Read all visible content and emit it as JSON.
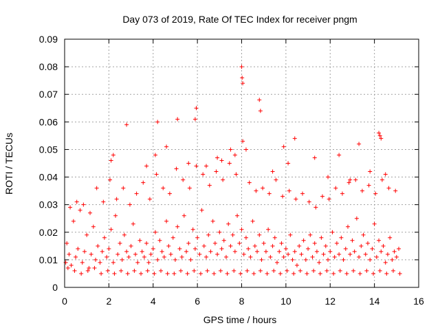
{
  "chart_data": {
    "type": "scatter",
    "title": "Day 073 of 2019, Rate Of TEC Index for receiver pngm",
    "xlabel": "GPS time / hours",
    "ylabel": "ROTI / TECUs",
    "xlim": [
      0,
      16
    ],
    "ylim": [
      0,
      0.09
    ],
    "xticks": [
      "0",
      "2",
      "4",
      "6",
      "8",
      "10",
      "12",
      "14",
      "16"
    ],
    "yticks": [
      "0",
      "0.01",
      "0.02",
      "0.03",
      "0.04",
      "0.05",
      "0.06",
      "0.07",
      "0.08",
      "0.09"
    ],
    "grid": true,
    "marker": "+",
    "color": "#ff0000",
    "series": [
      {
        "name": "ROTI",
        "x": [
          0.05,
          0.1,
          0.2,
          0.3,
          0.4,
          0.5,
          0.6,
          0.7,
          0.8,
          0.9,
          1.0,
          1.1,
          1.2,
          1.3,
          1.4,
          1.5,
          1.6,
          1.7,
          1.8,
          1.9,
          2.0,
          2.1,
          2.2,
          2.3,
          2.4,
          2.5,
          2.6,
          2.7,
          2.8,
          2.9,
          3.0,
          3.1,
          3.2,
          3.3,
          3.4,
          3.5,
          3.6,
          3.7,
          3.8,
          3.9,
          4.0,
          4.1,
          4.2,
          4.3,
          4.4,
          4.5,
          4.6,
          4.7,
          4.8,
          4.9,
          5.0,
          5.1,
          5.2,
          5.3,
          5.4,
          5.5,
          5.6,
          5.7,
          5.8,
          5.9,
          6.0,
          6.1,
          6.2,
          6.3,
          6.4,
          6.5,
          6.6,
          6.7,
          6.8,
          6.9,
          7.0,
          7.1,
          7.2,
          7.3,
          7.4,
          7.5,
          7.6,
          7.7,
          7.8,
          7.9,
          8.0,
          8.1,
          8.2,
          8.3,
          8.4,
          8.5,
          8.6,
          8.7,
          8.8,
          8.9,
          9.0,
          9.1,
          9.2,
          9.3,
          9.4,
          9.5,
          9.6,
          9.7,
          9.8,
          9.9,
          10.0,
          10.1,
          10.2,
          10.3,
          10.4,
          10.5,
          10.6,
          10.7,
          10.8,
          10.9,
          11.0,
          11.1,
          11.2,
          11.3,
          11.4,
          11.5,
          11.6,
          11.7,
          11.8,
          11.9,
          12.0,
          12.1,
          12.2,
          12.3,
          12.4,
          12.5,
          12.6,
          12.7,
          12.8,
          12.9,
          13.0,
          13.1,
          13.2,
          13.3,
          13.4,
          13.5,
          13.6,
          13.7,
          13.8,
          13.9,
          14.0,
          14.1,
          14.2,
          14.3,
          14.4,
          14.5,
          14.6,
          14.7,
          14.8,
          14.9,
          15.0,
          15.1,
          0.15,
          0.45,
          0.75,
          1.05,
          1.35,
          1.65,
          1.95,
          2.25,
          2.55,
          2.85,
          3.15,
          3.45,
          3.75,
          4.05,
          4.35,
          4.65,
          4.95,
          5.25,
          5.55,
          5.85,
          6.15,
          6.45,
          6.75,
          7.05,
          7.35,
          7.65,
          7.95,
          8.25,
          8.55,
          8.85,
          9.15,
          9.45,
          9.75,
          10.05,
          10.35,
          10.65,
          10.95,
          11.25,
          11.55,
          11.85,
          12.15,
          12.45,
          12.75,
          13.05,
          13.35,
          13.65,
          13.95,
          14.25,
          14.55,
          14.85,
          15.15,
          0.25,
          0.55,
          0.85,
          1.15,
          1.45,
          1.75,
          2.05,
          2.35,
          2.65,
          2.95,
          3.25,
          3.55,
          3.85,
          4.15,
          4.45,
          4.75,
          5.05,
          5.35,
          5.65,
          5.95,
          6.25,
          6.55,
          6.85,
          7.15,
          7.45,
          7.75,
          8.05,
          8.35,
          8.65,
          8.95,
          9.25,
          9.55,
          9.85,
          10.15,
          10.45,
          10.75,
          11.05,
          11.35,
          11.65,
          11.95,
          12.25,
          12.55,
          12.85,
          13.15,
          13.45,
          13.75,
          14.05,
          14.35,
          14.65,
          14.95,
          2.8,
          4.2,
          5.1,
          5.95,
          5.9,
          6.9,
          7.5,
          8.0,
          8.02,
          8.05,
          8.8,
          8.85,
          9.9,
          10.4,
          11.3,
          12.4,
          13.3,
          14.2,
          14.25,
          14.3,
          2.1,
          2.2,
          3.7,
          4.1,
          4.6,
          5.6,
          6.4,
          7.1,
          7.7,
          8.2,
          9.4,
          10.1,
          11.9,
          12.9,
          13.8,
          14.5
        ],
        "y": [
          0.009,
          0.016,
          0.012,
          0.008,
          0.024,
          0.011,
          0.014,
          0.028,
          0.009,
          0.013,
          0.019,
          0.007,
          0.012,
          0.022,
          0.01,
          0.015,
          0.009,
          0.013,
          0.018,
          0.011,
          0.014,
          0.021,
          0.009,
          0.026,
          0.012,
          0.016,
          0.01,
          0.019,
          0.013,
          0.011,
          0.015,
          0.023,
          0.012,
          0.009,
          0.017,
          0.013,
          0.011,
          0.016,
          0.009,
          0.012,
          0.014,
          0.02,
          0.01,
          0.017,
          0.013,
          0.011,
          0.024,
          0.015,
          0.012,
          0.018,
          0.01,
          0.022,
          0.014,
          0.011,
          0.026,
          0.013,
          0.016,
          0.01,
          0.021,
          0.014,
          0.018,
          0.012,
          0.028,
          0.015,
          0.011,
          0.019,
          0.013,
          0.024,
          0.016,
          0.012,
          0.02,
          0.014,
          0.017,
          0.011,
          0.023,
          0.015,
          0.019,
          0.013,
          0.026,
          0.016,
          0.021,
          0.012,
          0.018,
          0.014,
          0.011,
          0.024,
          0.015,
          0.013,
          0.019,
          0.01,
          0.016,
          0.013,
          0.021,
          0.011,
          0.015,
          0.018,
          0.009,
          0.013,
          0.016,
          0.011,
          0.014,
          0.012,
          0.019,
          0.01,
          0.013,
          0.008,
          0.015,
          0.012,
          0.017,
          0.01,
          0.014,
          0.019,
          0.011,
          0.016,
          0.013,
          0.009,
          0.018,
          0.012,
          0.015,
          0.01,
          0.013,
          0.02,
          0.011,
          0.016,
          0.012,
          0.018,
          0.01,
          0.014,
          0.022,
          0.012,
          0.017,
          0.013,
          0.025,
          0.011,
          0.015,
          0.019,
          0.012,
          0.016,
          0.01,
          0.014,
          0.023,
          0.011,
          0.017,
          0.013,
          0.015,
          0.009,
          0.012,
          0.018,
          0.01,
          0.013,
          0.011,
          0.014,
          0.007,
          0.006,
          0.005,
          0.006,
          0.007,
          0.005,
          0.006,
          0.005,
          0.006,
          0.005,
          0.006,
          0.005,
          0.006,
          0.005,
          0.006,
          0.005,
          0.005,
          0.006,
          0.005,
          0.006,
          0.005,
          0.006,
          0.005,
          0.006,
          0.005,
          0.006,
          0.005,
          0.006,
          0.005,
          0.006,
          0.005,
          0.006,
          0.005,
          0.006,
          0.005,
          0.006,
          0.005,
          0.006,
          0.005,
          0.006,
          0.005,
          0.006,
          0.005,
          0.006,
          0.005,
          0.006,
          0.005,
          0.006,
          0.005,
          0.006,
          0.005,
          0.029,
          0.031,
          0.03,
          0.027,
          0.036,
          0.031,
          0.039,
          0.032,
          0.036,
          0.03,
          0.034,
          0.038,
          0.032,
          0.041,
          0.036,
          0.034,
          0.043,
          0.039,
          0.036,
          0.044,
          0.041,
          0.037,
          0.042,
          0.039,
          0.045,
          0.041,
          0.053,
          0.038,
          0.035,
          0.036,
          0.034,
          0.039,
          0.033,
          0.035,
          0.032,
          0.034,
          0.031,
          0.029,
          0.033,
          0.032,
          0.036,
          0.034,
          0.038,
          0.039,
          0.035,
          0.037,
          0.034,
          0.039,
          0.036,
          0.035,
          0.059,
          0.06,
          0.061,
          0.065,
          0.061,
          0.047,
          0.05,
          0.08,
          0.076,
          0.074,
          0.068,
          0.064,
          0.051,
          0.054,
          0.047,
          0.048,
          0.052,
          0.056,
          0.055,
          0.054,
          0.046,
          0.048,
          0.044,
          0.048,
          0.051,
          0.045,
          0.044,
          0.046,
          0.048,
          0.05,
          0.042,
          0.045,
          0.04,
          0.039,
          0.042,
          0.041
        ]
      }
    ]
  }
}
